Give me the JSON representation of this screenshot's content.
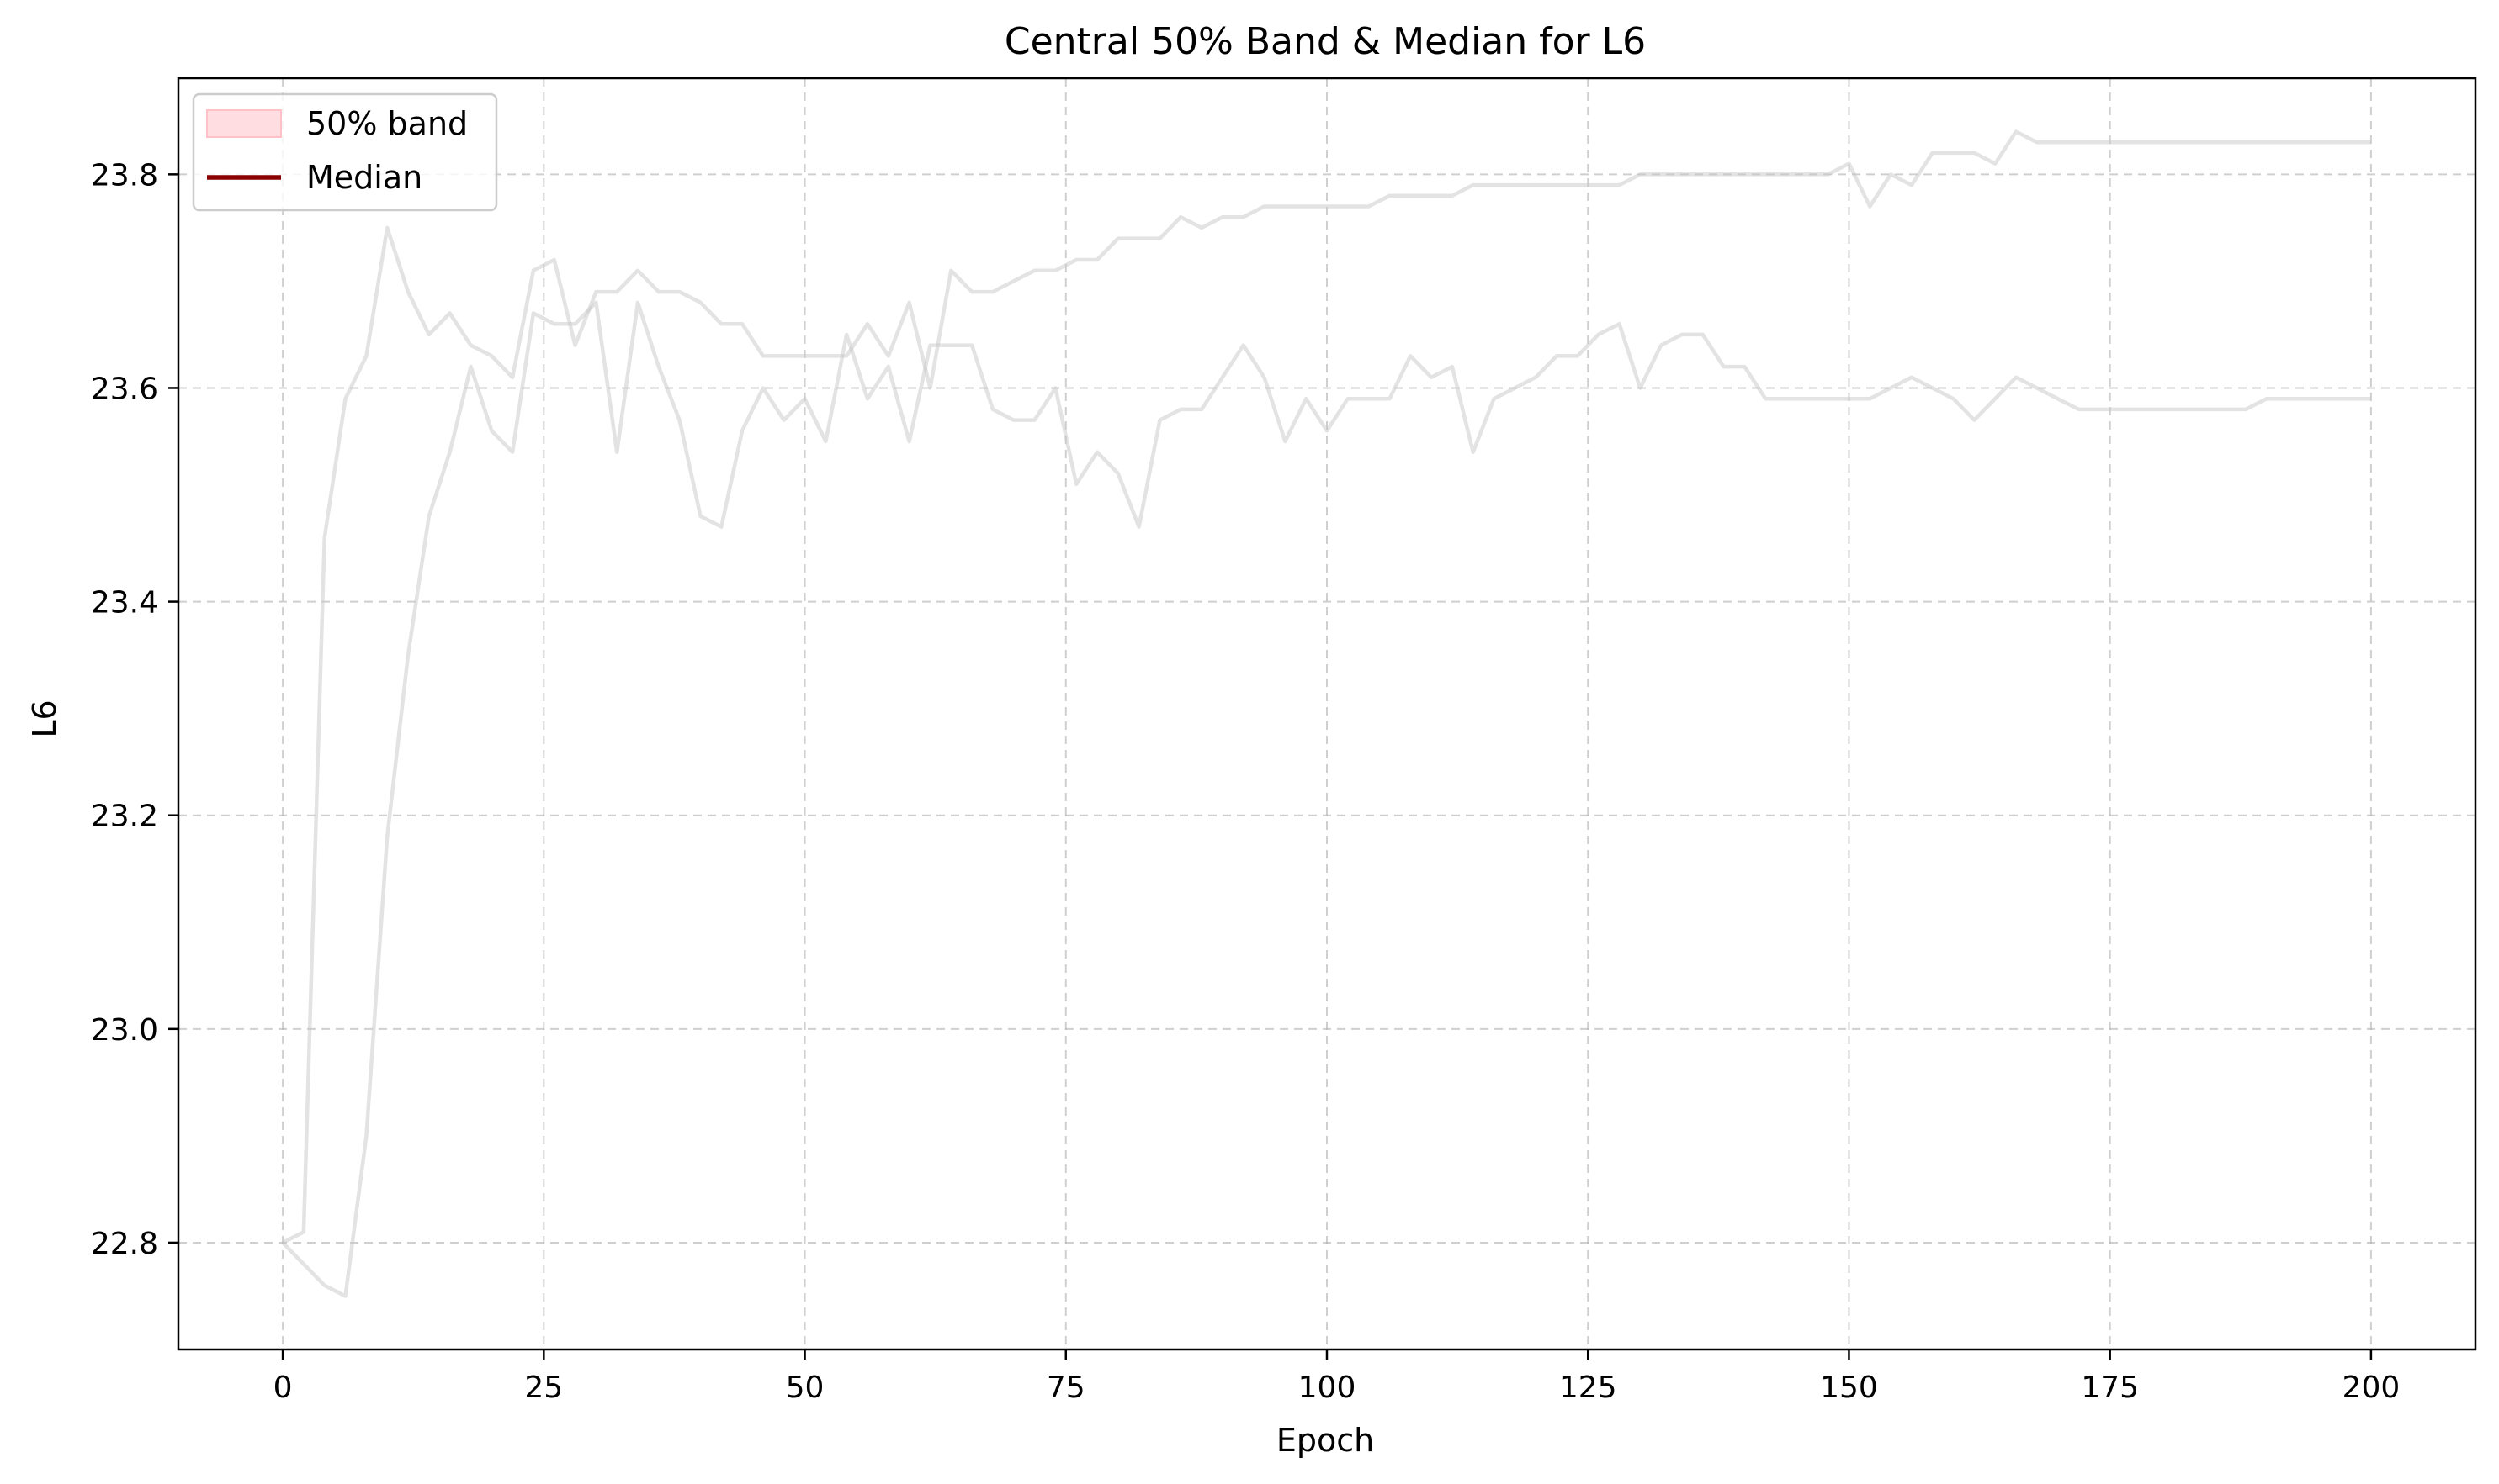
{
  "chart_data": {
    "type": "line",
    "title": "Central 50% Band & Median for L6",
    "xlabel": "Epoch",
    "ylabel": "L6",
    "xlim": [
      -10,
      210
    ],
    "ylim": [
      22.7,
      23.89
    ],
    "xticks": [
      0,
      25,
      50,
      75,
      100,
      125,
      150,
      175,
      200
    ],
    "yticks": [
      22.8,
      23.0,
      23.2,
      23.4,
      23.6,
      23.8
    ],
    "xtick_labels": [
      "0",
      "25",
      "50",
      "75",
      "100",
      "125",
      "150",
      "175",
      "200"
    ],
    "ytick_labels": [
      "22.8",
      "23.0",
      "23.2",
      "23.4",
      "23.6",
      "23.8"
    ],
    "grid": true,
    "legend": {
      "position": "top-left",
      "entries": [
        {
          "label": "50% band",
          "kind": "patch",
          "color": "#ffdde1"
        },
        {
          "label": "Median",
          "kind": "line",
          "color": "#8b0000"
        }
      ]
    },
    "series": [
      {
        "color": "#c8c8c8",
        "x": [
          0,
          2,
          4,
          6,
          8,
          10,
          12,
          14,
          16,
          18,
          20,
          22,
          24,
          26,
          28,
          30,
          32,
          34,
          36,
          38,
          40,
          42,
          44,
          46,
          48,
          50,
          52,
          54,
          56,
          58,
          60,
          62,
          64,
          66,
          68,
          70,
          72,
          74,
          76,
          78,
          80,
          82,
          84,
          86,
          88,
          90,
          92,
          94,
          96,
          98,
          100,
          102,
          104,
          106,
          108,
          110,
          112,
          114,
          116,
          118,
          120,
          122,
          124,
          126,
          128,
          130,
          132,
          134,
          136,
          138,
          140,
          142,
          144,
          146,
          148,
          150,
          152,
          154,
          156,
          158,
          160,
          162,
          164,
          166,
          168,
          170,
          172,
          174,
          176,
          178,
          180,
          182,
          184,
          186,
          188,
          190,
          192,
          194,
          196,
          198,
          200
        ],
        "values": [
          22.8,
          22.81,
          23.46,
          23.59,
          23.63,
          23.75,
          23.69,
          23.65,
          23.67,
          23.64,
          23.63,
          23.61,
          23.71,
          23.72,
          23.64,
          23.69,
          23.69,
          23.71,
          23.69,
          23.69,
          23.68,
          23.66,
          23.66,
          23.63,
          23.63,
          23.63,
          23.63,
          23.63,
          23.66,
          23.63,
          23.68,
          23.6,
          23.71,
          23.69,
          23.69,
          23.7,
          23.71,
          23.71,
          23.72,
          23.72,
          23.74,
          23.74,
          23.74,
          23.76,
          23.75,
          23.76,
          23.76,
          23.77,
          23.77,
          23.77,
          23.77,
          23.77,
          23.77,
          23.78,
          23.78,
          23.78,
          23.78,
          23.79,
          23.79,
          23.79,
          23.79,
          23.79,
          23.79,
          23.79,
          23.79,
          23.8,
          23.8,
          23.8,
          23.8,
          23.8,
          23.8,
          23.8,
          23.8,
          23.8,
          23.8,
          23.81,
          23.77,
          23.8,
          23.79,
          23.82,
          23.82,
          23.82,
          23.81,
          23.84,
          23.83,
          23.83,
          23.83,
          23.83,
          23.83,
          23.83,
          23.83,
          23.83,
          23.83,
          23.83,
          23.83,
          23.83,
          23.83,
          23.83,
          23.83,
          23.83,
          23.83
        ]
      },
      {
        "color": "#c8c8c8",
        "x": [
          0,
          2,
          4,
          6,
          8,
          10,
          12,
          14,
          16,
          18,
          20,
          22,
          24,
          26,
          28,
          30,
          32,
          34,
          36,
          38,
          40,
          42,
          44,
          46,
          48,
          50,
          52,
          54,
          56,
          58,
          60,
          62,
          64,
          66,
          68,
          70,
          72,
          74,
          76,
          78,
          80,
          82,
          84,
          86,
          88,
          90,
          92,
          94,
          96,
          98,
          100,
          102,
          104,
          106,
          108,
          110,
          112,
          114,
          116,
          118,
          120,
          122,
          124,
          126,
          128,
          130,
          132,
          134,
          136,
          138,
          140,
          142,
          144,
          146,
          148,
          150,
          152,
          154,
          156,
          158,
          160,
          162,
          164,
          166,
          168,
          170,
          172,
          174,
          176,
          178,
          180,
          182,
          184,
          186,
          188,
          190,
          192,
          194,
          196,
          198,
          200
        ],
        "values": [
          22.8,
          22.78,
          22.76,
          22.75,
          22.9,
          23.18,
          23.35,
          23.48,
          23.54,
          23.62,
          23.56,
          23.54,
          23.67,
          23.66,
          23.66,
          23.68,
          23.54,
          23.68,
          23.62,
          23.57,
          23.48,
          23.47,
          23.56,
          23.6,
          23.57,
          23.59,
          23.55,
          23.65,
          23.59,
          23.62,
          23.55,
          23.64,
          23.64,
          23.64,
          23.58,
          23.57,
          23.57,
          23.6,
          23.51,
          23.54,
          23.52,
          23.47,
          23.57,
          23.58,
          23.58,
          23.61,
          23.64,
          23.61,
          23.55,
          23.59,
          23.56,
          23.59,
          23.59,
          23.59,
          23.63,
          23.61,
          23.62,
          23.54,
          23.59,
          23.6,
          23.61,
          23.63,
          23.63,
          23.65,
          23.66,
          23.6,
          23.64,
          23.65,
          23.65,
          23.62,
          23.62,
          23.59,
          23.59,
          23.59,
          23.59,
          23.59,
          23.59,
          23.6,
          23.61,
          23.6,
          23.59,
          23.57,
          23.59,
          23.61,
          23.6,
          23.59,
          23.58,
          23.58,
          23.58,
          23.58,
          23.58,
          23.58,
          23.58,
          23.58,
          23.58,
          23.59,
          23.59,
          23.59,
          23.59,
          23.59,
          23.59
        ]
      }
    ]
  }
}
